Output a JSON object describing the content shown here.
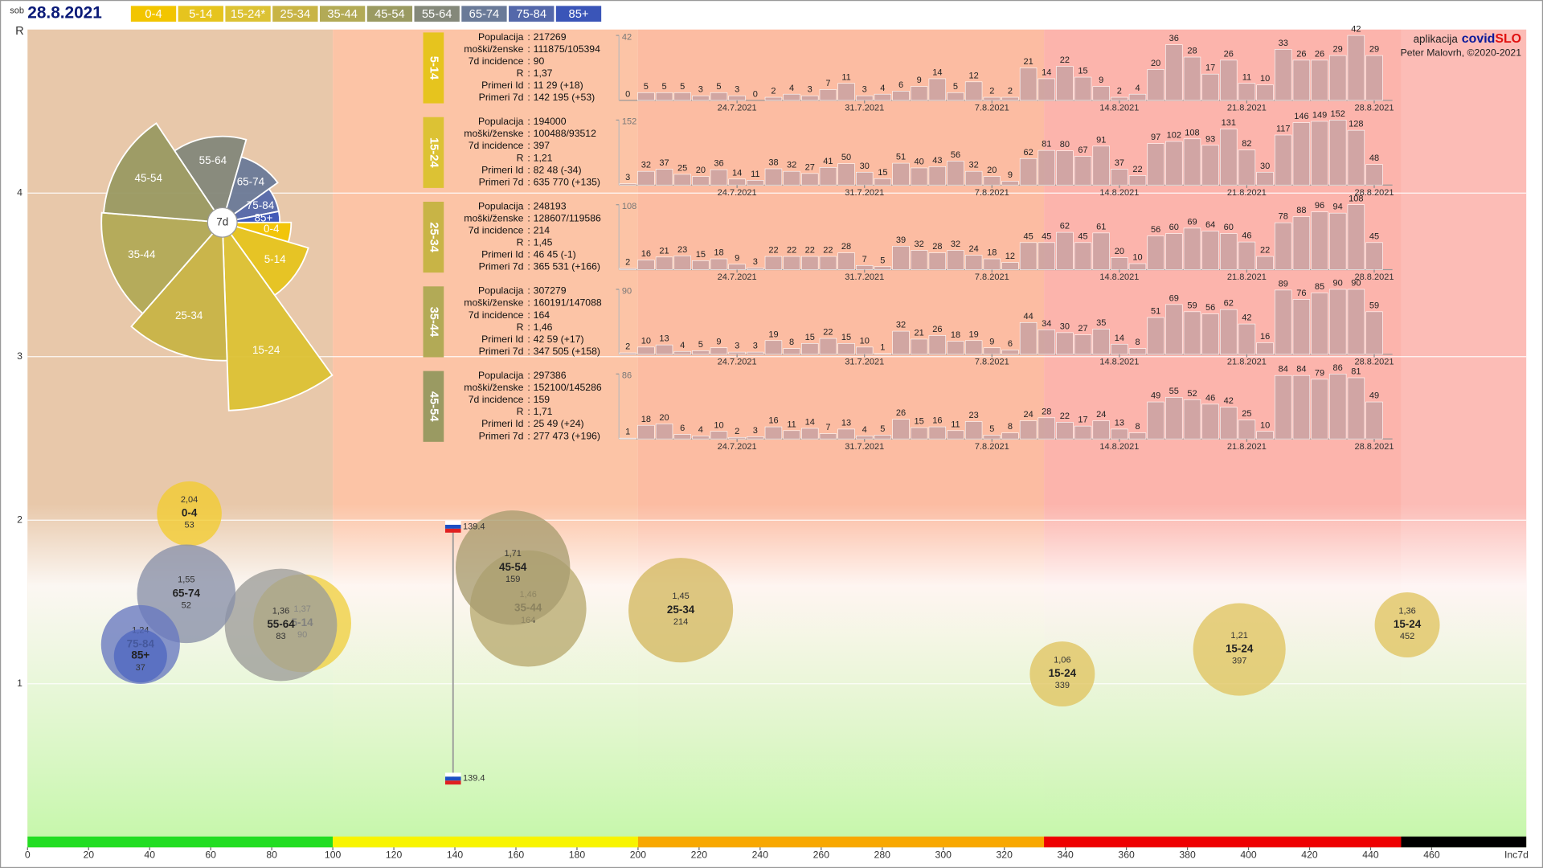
{
  "header": {
    "day": "sob",
    "date": "28.8.2021",
    "legend": [
      {
        "name": "0-4",
        "color": "#f2c500"
      },
      {
        "name": "5-14",
        "color": "#e6c41e"
      },
      {
        "name": "15-24*",
        "color": "#dcc234"
      },
      {
        "name": "25-34",
        "color": "#c8b446"
      },
      {
        "name": "35-44",
        "color": "#b2aa56"
      },
      {
        "name": "45-54",
        "color": "#9a9a62"
      },
      {
        "name": "55-64",
        "color": "#84887a"
      },
      {
        "name": "65-74",
        "color": "#6a7a98"
      },
      {
        "name": "75-84",
        "color": "#5468aa"
      },
      {
        "name": "85+",
        "color": "#3a55b8"
      }
    ]
  },
  "credits": {
    "app": "aplikacija",
    "brand_a": "covid",
    "brand_b": "SLO",
    "author": "Peter Malovrh, ©2020-2021"
  },
  "chart_data": [
    {
      "type": "bubble",
      "xlabel": "Inc7d",
      "ylabel": "R",
      "xlim": [
        0,
        491
      ],
      "ylim": [
        0,
        5
      ],
      "xticks": [
        0,
        20,
        40,
        60,
        80,
        100,
        120,
        140,
        160,
        180,
        200,
        220,
        240,
        260,
        280,
        300,
        320,
        340,
        360,
        380,
        400,
        420,
        440,
        460
      ],
      "yticks": [
        1,
        2,
        3,
        4
      ],
      "grid": true,
      "zones": [
        {
          "from": 0,
          "to": 100,
          "color": "#22dd22",
          "bg": "#e8c8aa"
        },
        {
          "from": 100,
          "to": 200,
          "color": "#f8f400",
          "bg": "#fcc4a6"
        },
        {
          "from": 200,
          "to": 333,
          "color": "#f8a800",
          "bg": "#fcbca2"
        },
        {
          "from": 333,
          "to": 450,
          "color": "#ee0000",
          "bg": "#fcb4ac"
        },
        {
          "from": 450,
          "to": 491,
          "color": "#000000",
          "bg": "#fcbcb6"
        }
      ],
      "series": [
        {
          "name": "0-4",
          "color": "#f2cc30",
          "x": [
            53
          ],
          "values": [
            2.04
          ],
          "value_labels": [
            "2,04"
          ],
          "sizes": [
            95
          ]
        },
        {
          "name": "5-14",
          "color": "#f0d040",
          "x": [
            90
          ],
          "values": [
            1.37
          ],
          "value_labels": [
            "1,37"
          ],
          "sizes": [
            217
          ]
        },
        {
          "name": "15-24",
          "color": "#e0c460",
          "x": [
            397,
            339,
            452
          ],
          "values": [
            1.21,
            1.06,
            1.36
          ],
          "value_labels": [
            "1,21",
            "1,06",
            "1,36"
          ],
          "sizes": [
            194,
            96,
            96
          ]
        },
        {
          "name": "25-34",
          "color": "#d4b860",
          "x": [
            214
          ],
          "values": [
            1.45
          ],
          "value_labels": [
            "1,45"
          ],
          "sizes": [
            248
          ]
        },
        {
          "name": "35-44",
          "color": "#b8aa70",
          "x": [
            164
          ],
          "values": [
            1.46
          ],
          "value_labels": [
            "1,46"
          ],
          "sizes": [
            307
          ]
        },
        {
          "name": "45-54",
          "color": "#a89c70",
          "x": [
            159
          ],
          "values": [
            1.71
          ],
          "value_labels": [
            "1,71"
          ],
          "sizes": [
            297
          ]
        },
        {
          "name": "55-64",
          "color": "#9c9c98",
          "x": [
            83
          ],
          "values": [
            1.36
          ],
          "value_labels": [
            "1,36"
          ],
          "sizes": [
            286
          ]
        },
        {
          "name": "65-74",
          "color": "#8890a8",
          "x": [
            52
          ],
          "values": [
            1.55
          ],
          "value_labels": [
            "1,55"
          ],
          "sizes": [
            220
          ]
        },
        {
          "name": "75-84",
          "color": "#6878c0",
          "x": [
            37
          ],
          "values": [
            1.24
          ],
          "value_labels": [
            "1,24"
          ],
          "sizes": [
            141
          ]
        },
        {
          "name": "85+",
          "color": "#5068c0",
          "x": [
            37
          ],
          "values": [
            1.17
          ],
          "sizes": [
            64
          ]
        }
      ],
      "markers": {
        "x": [
          139.4,
          139.4
        ],
        "values": [
          1.96,
          0.42
        ]
      }
    },
    {
      "type": "polar",
      "center_label": "7d"
    },
    {
      "type": "bar",
      "title": "5-14",
      "color": "#e6c41e",
      "bar_color": "#c9a2a2",
      "info": [
        {
          "label": "Populacija",
          "value": "217269"
        },
        {
          "label": "moški/ženske",
          "value": "111875/105394"
        },
        {
          "label": "7d incidence",
          "value": "90"
        },
        {
          "label": "R",
          "value": "1,37"
        },
        {
          "label": "Primeri Id",
          "value": "11 29 (+18)"
        },
        {
          "label": "Primeri 7d",
          "value": "142 195 (+53)"
        }
      ],
      "categories": [
        null,
        null,
        null,
        null,
        null,
        null,
        "24.7.2021",
        null,
        null,
        null,
        null,
        null,
        null,
        "31.7.2021",
        null,
        null,
        null,
        null,
        null,
        null,
        "7.8.2021",
        null,
        null,
        null,
        null,
        null,
        null,
        "14.8.2021",
        null,
        null,
        null,
        null,
        null,
        null,
        "21.8.2021",
        null,
        null,
        null,
        null,
        null,
        null,
        "28.8.2021"
      ],
      "values": [
        0,
        5,
        5,
        5,
        3,
        5,
        3,
        0,
        2,
        4,
        3,
        7,
        11,
        3,
        4,
        6,
        9,
        14,
        5,
        12,
        2,
        2,
        21,
        14,
        22,
        15,
        9,
        2,
        4,
        20,
        36,
        28,
        17,
        26,
        11,
        10,
        33,
        26,
        26,
        29,
        42,
        29
      ],
      "ylim": [
        0,
        42
      ],
      "yticks": [
        42
      ]
    },
    {
      "type": "bar",
      "title": "15-24",
      "color": "#dcc234",
      "bar_color": "#c9a2a2",
      "info": [
        {
          "label": "Populacija",
          "value": "194000"
        },
        {
          "label": "moški/ženske",
          "value": "100488/93512"
        },
        {
          "label": "7d incidence",
          "value": "397"
        },
        {
          "label": "R",
          "value": "1,21"
        },
        {
          "label": "Primeri Id",
          "value": "82 48 (-34)"
        },
        {
          "label": "Primeri 7d",
          "value": "635 770 (+135)"
        }
      ],
      "categories": [
        null,
        null,
        null,
        null,
        null,
        null,
        "24.7.2021",
        null,
        null,
        null,
        null,
        null,
        null,
        "31.7.2021",
        null,
        null,
        null,
        null,
        null,
        null,
        "7.8.2021",
        null,
        null,
        null,
        null,
        null,
        null,
        "14.8.2021",
        null,
        null,
        null,
        null,
        null,
        null,
        "21.8.2021",
        null,
        null,
        null,
        null,
        null,
        null,
        "28.8.2021"
      ],
      "values": [
        3,
        32,
        37,
        25,
        20,
        36,
        14,
        11,
        38,
        32,
        27,
        41,
        50,
        30,
        15,
        51,
        40,
        43,
        56,
        32,
        20,
        9,
        62,
        81,
        80,
        67,
        91,
        37,
        22,
        97,
        102,
        108,
        93,
        131,
        82,
        30,
        117,
        146,
        149,
        152,
        128,
        48
      ],
      "ylim": [
        0,
        152
      ],
      "yticks": [
        152
      ]
    },
    {
      "type": "bar",
      "title": "25-34",
      "color": "#c8b446",
      "bar_color": "#c9a2a2",
      "info": [
        {
          "label": "Populacija",
          "value": "248193"
        },
        {
          "label": "moški/ženske",
          "value": "128607/119586"
        },
        {
          "label": "7d incidence",
          "value": "214"
        },
        {
          "label": "R",
          "value": "1,45"
        },
        {
          "label": "Primeri Id",
          "value": "46 45 (-1)"
        },
        {
          "label": "Primeri 7d",
          "value": "365 531 (+166)"
        }
      ],
      "categories": [
        null,
        null,
        null,
        null,
        null,
        null,
        "24.7.2021",
        null,
        null,
        null,
        null,
        null,
        null,
        "31.7.2021",
        null,
        null,
        null,
        null,
        null,
        null,
        "7.8.2021",
        null,
        null,
        null,
        null,
        null,
        null,
        "14.8.2021",
        null,
        null,
        null,
        null,
        null,
        null,
        "21.8.2021",
        null,
        null,
        null,
        null,
        null,
        null,
        "28.8.2021"
      ],
      "values": [
        2,
        16,
        21,
        23,
        15,
        18,
        9,
        3,
        22,
        22,
        22,
        22,
        28,
        7,
        5,
        39,
        32,
        28,
        32,
        24,
        18,
        12,
        45,
        45,
        62,
        45,
        61,
        20,
        10,
        56,
        60,
        69,
        64,
        60,
        46,
        22,
        78,
        88,
        96,
        94,
        108,
        45
      ],
      "ylim": [
        0,
        108
      ],
      "yticks": [
        108
      ]
    },
    {
      "type": "bar",
      "title": "35-44",
      "color": "#b2aa56",
      "bar_color": "#c9a2a2",
      "info": [
        {
          "label": "Populacija",
          "value": "307279"
        },
        {
          "label": "moški/ženske",
          "value": "160191/147088"
        },
        {
          "label": "7d incidence",
          "value": "164"
        },
        {
          "label": "R",
          "value": "1,46"
        },
        {
          "label": "Primeri Id",
          "value": "42 59 (+17)"
        },
        {
          "label": "Primeri 7d",
          "value": "347 505 (+158)"
        }
      ],
      "categories": [
        null,
        null,
        null,
        null,
        null,
        null,
        "24.7.2021",
        null,
        null,
        null,
        null,
        null,
        null,
        "31.7.2021",
        null,
        null,
        null,
        null,
        null,
        null,
        "7.8.2021",
        null,
        null,
        null,
        null,
        null,
        null,
        "14.8.2021",
        null,
        null,
        null,
        null,
        null,
        null,
        "21.8.2021",
        null,
        null,
        null,
        null,
        null,
        null,
        "28.8.2021"
      ],
      "values": [
        2,
        10,
        13,
        4,
        5,
        9,
        3,
        3,
        19,
        8,
        15,
        22,
        15,
        10,
        1,
        32,
        21,
        26,
        18,
        19,
        9,
        6,
        44,
        34,
        30,
        27,
        35,
        14,
        8,
        51,
        69,
        59,
        56,
        62,
        42,
        16,
        89,
        76,
        85,
        90,
        90,
        59
      ],
      "ylim": [
        0,
        90
      ],
      "yticks": [
        90
      ]
    },
    {
      "type": "bar",
      "title": "45-54",
      "color": "#9a9a62",
      "bar_color": "#c9a2a2",
      "info": [
        {
          "label": "Populacija",
          "value": "297386"
        },
        {
          "label": "moški/ženske",
          "value": "152100/145286"
        },
        {
          "label": "7d incidence",
          "value": "159"
        },
        {
          "label": "R",
          "value": "1,71"
        },
        {
          "label": "Primeri Id",
          "value": "25 49 (+24)"
        },
        {
          "label": "Primeri 7d",
          "value": "277 473 (+196)"
        }
      ],
      "categories": [
        null,
        null,
        null,
        null,
        null,
        null,
        "24.7.2021",
        null,
        null,
        null,
        null,
        null,
        null,
        "31.7.2021",
        null,
        null,
        null,
        null,
        null,
        null,
        "7.8.2021",
        null,
        null,
        null,
        null,
        null,
        null,
        "14.8.2021",
        null,
        null,
        null,
        null,
        null,
        null,
        "21.8.2021",
        null,
        null,
        null,
        null,
        null,
        null,
        "28.8.2021"
      ],
      "values": [
        1,
        18,
        20,
        6,
        4,
        10,
        2,
        3,
        16,
        11,
        14,
        7,
        13,
        4,
        5,
        26,
        15,
        16,
        11,
        23,
        5,
        8,
        24,
        28,
        22,
        17,
        24,
        13,
        8,
        49,
        55,
        52,
        46,
        42,
        25,
        10,
        84,
        84,
        79,
        86,
        81,
        49
      ],
      "ylim": [
        0,
        86
      ],
      "yticks": [
        86
      ]
    }
  ]
}
